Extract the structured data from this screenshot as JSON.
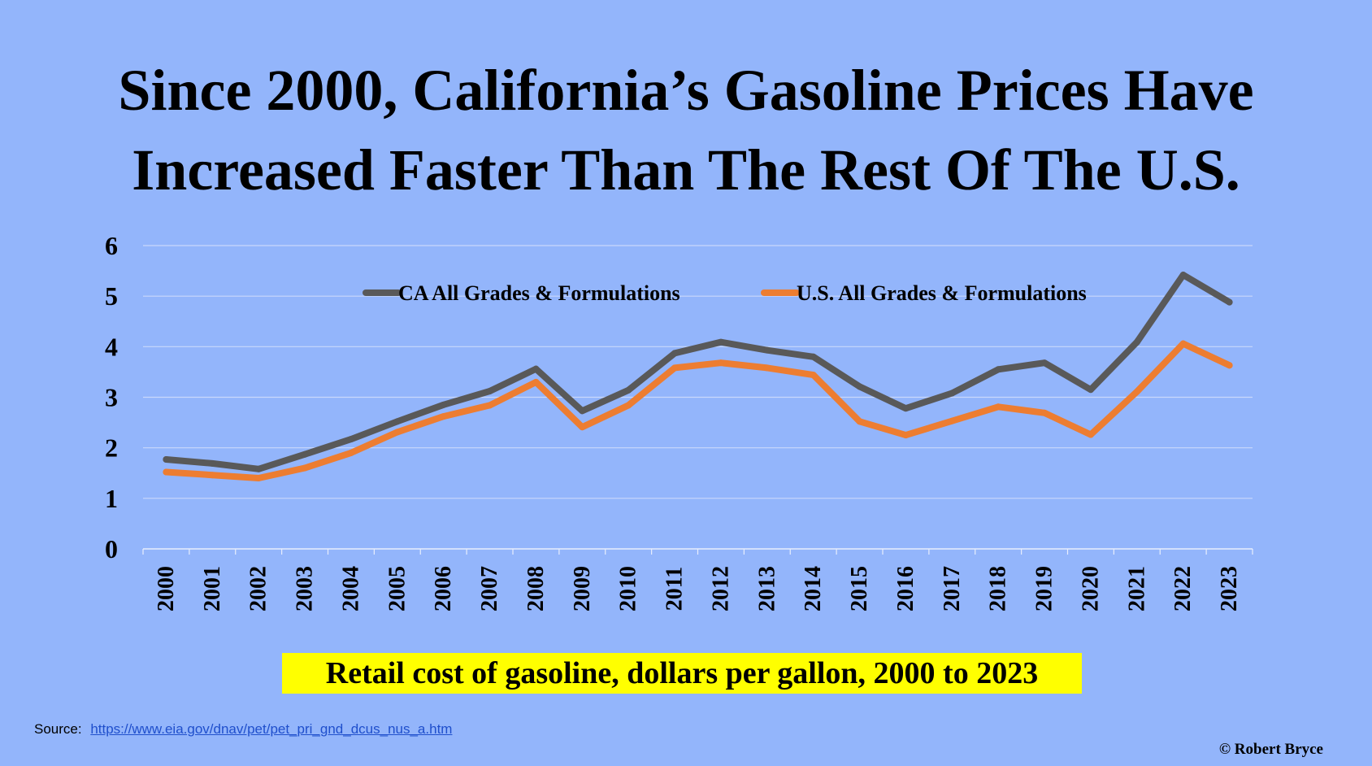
{
  "title": {
    "line1": "Since 2000, California’s Gasoline Prices Have",
    "line2": "Increased Faster Than The Rest Of The U.S."
  },
  "caption": "Retail cost of gasoline, dollars per gallon, 2000 to 2023",
  "source": {
    "label": "Source:",
    "link_text": "https://www.eia.gov/dnav/pet/pet_pri_gnd_dcus_nus_a.htm"
  },
  "copyright": "© Robert Bryce",
  "chart_data": {
    "type": "line",
    "categories": [
      "2000",
      "2001",
      "2002",
      "2003",
      "2004",
      "2005",
      "2006",
      "2007",
      "2008",
      "2009",
      "2010",
      "2011",
      "2012",
      "2013",
      "2014",
      "2015",
      "2016",
      "2017",
      "2018",
      "2019",
      "2020",
      "2021",
      "2022",
      "2023"
    ],
    "ylim": [
      0,
      6
    ],
    "yticks": [
      "0",
      "1",
      "2",
      "3",
      "4",
      "5",
      "6"
    ],
    "grid": true,
    "legend_position": "top-center",
    "series": [
      {
        "name": "CA All Grades & Formulations",
        "color": "#595959",
        "values": [
          1.77,
          1.69,
          1.58,
          1.87,
          2.17,
          2.52,
          2.85,
          3.12,
          3.56,
          2.73,
          3.14,
          3.87,
          4.09,
          3.93,
          3.8,
          3.21,
          2.78,
          3.08,
          3.55,
          3.68,
          3.15,
          4.09,
          5.42,
          4.88
        ]
      },
      {
        "name": "U.S. All Grades & Formulations",
        "color": "#ed7d31",
        "values": [
          1.52,
          1.46,
          1.4,
          1.6,
          1.9,
          2.31,
          2.62,
          2.84,
          3.3,
          2.41,
          2.84,
          3.58,
          3.68,
          3.58,
          3.44,
          2.52,
          2.25,
          2.53,
          2.81,
          2.69,
          2.26,
          3.11,
          4.06,
          3.63
        ]
      }
    ]
  }
}
